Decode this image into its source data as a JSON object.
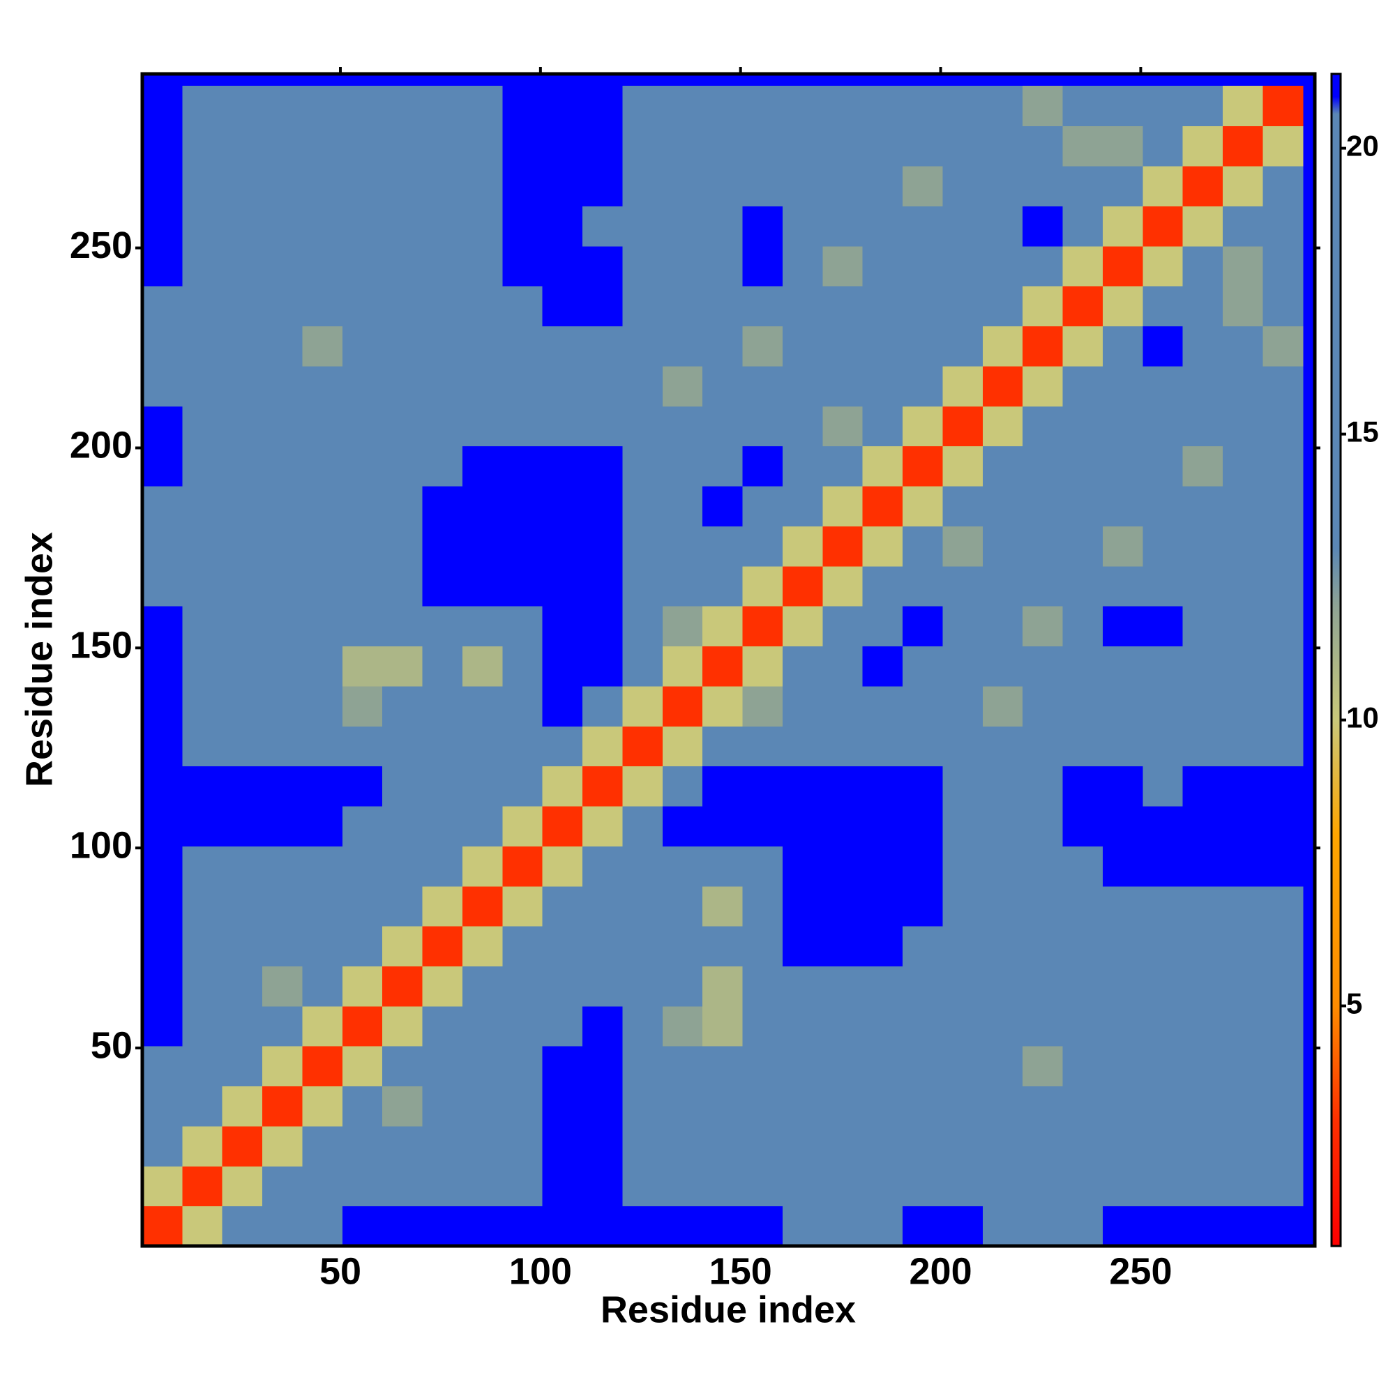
{
  "chart_data": {
    "type": "heatmap",
    "xlabel": "Residue index",
    "ylabel": "Residue index",
    "x": [
      5.5,
      15.5,
      25.5,
      35.5,
      45.5,
      55.5,
      65.5,
      75.5,
      85.5,
      95.5,
      105.5,
      115.5,
      125.5,
      135.5,
      145.5,
      155.5,
      165.5,
      175.5,
      185.5,
      195.5,
      205.5,
      215.5,
      225.5,
      235.5,
      245.5,
      255.5,
      265.5,
      275.5,
      285.5
    ],
    "y": [
      5.5,
      15.5,
      25.5,
      35.5,
      45.5,
      55.5,
      65.5,
      75.5,
      85.5,
      95.5,
      105.5,
      115.5,
      125.5,
      135.5,
      145.5,
      155.5,
      165.5,
      175.5,
      185.5,
      195.5,
      205.5,
      215.5,
      225.5,
      235.5,
      245.5,
      255.5,
      265.5,
      275.5,
      285.5
    ],
    "values": [
      [
        3,
        10,
        17,
        20,
        20,
        22,
        22,
        22,
        22,
        22,
        22,
        22,
        22,
        22,
        22,
        22,
        20,
        20,
        20,
        22,
        22,
        20,
        20,
        20,
        22,
        22,
        22,
        22,
        22
      ],
      [
        10,
        3,
        10,
        15,
        17,
        17,
        17,
        17,
        17,
        20,
        22,
        22,
        20,
        17,
        17,
        17,
        17,
        17,
        20,
        20,
        20,
        20,
        17,
        17,
        20,
        20,
        20,
        17,
        20
      ],
      [
        17,
        10,
        3,
        10,
        13,
        14,
        15,
        17,
        17,
        20,
        22,
        22,
        17,
        17,
        17,
        17,
        17,
        17,
        17,
        17,
        17,
        17,
        17,
        17,
        17,
        20,
        20,
        17,
        17
      ],
      [
        20,
        15,
        10,
        3,
        10,
        13,
        12,
        14,
        17,
        20,
        22,
        22,
        17,
        17,
        17,
        17,
        17,
        17,
        17,
        17,
        17,
        17,
        15,
        17,
        17,
        17,
        17,
        17,
        17
      ],
      [
        20,
        17,
        13,
        10,
        3,
        10,
        13,
        14,
        17,
        17,
        22,
        22,
        17,
        15,
        14,
        17,
        17,
        17,
        17,
        17,
        17,
        17,
        12,
        17,
        17,
        17,
        17,
        13,
        13
      ],
      [
        22,
        17,
        14,
        13,
        10,
        3,
        10,
        13,
        15,
        17,
        20,
        22,
        17,
        12,
        11,
        17,
        17,
        17,
        17,
        17,
        17,
        17,
        13,
        17,
        17,
        17,
        17,
        17,
        17
      ],
      [
        22,
        17,
        15,
        12,
        13,
        10,
        3,
        10,
        13,
        17,
        17,
        20,
        17,
        13,
        11,
        15,
        20,
        20,
        20,
        17,
        17,
        17,
        13,
        17,
        17,
        17,
        17,
        17,
        17
      ],
      [
        22,
        17,
        17,
        14,
        14,
        13,
        10,
        3,
        10,
        14,
        17,
        17,
        17,
        15,
        13,
        17,
        22,
        22,
        22,
        20,
        17,
        17,
        17,
        17,
        17,
        20,
        20,
        20,
        17
      ],
      [
        22,
        17,
        17,
        17,
        17,
        15,
        13,
        10,
        3,
        10,
        14,
        17,
        17,
        14,
        11,
        15,
        22,
        22,
        22,
        22,
        17,
        17,
        17,
        17,
        20,
        20,
        20,
        20,
        20
      ],
      [
        22,
        20,
        20,
        20,
        17,
        17,
        17,
        14,
        10,
        3,
        10,
        13,
        17,
        15,
        14,
        17,
        22,
        22,
        22,
        22,
        20,
        17,
        17,
        20,
        22,
        22,
        22,
        22,
        22
      ],
      [
        22,
        22,
        22,
        22,
        22,
        20,
        17,
        17,
        14,
        10,
        3,
        10,
        15,
        22,
        22,
        22,
        22,
        22,
        22,
        22,
        20,
        20,
        20,
        22,
        22,
        22,
        22,
        22,
        22
      ],
      [
        22,
        22,
        22,
        22,
        22,
        22,
        20,
        17,
        17,
        13,
        10,
        3,
        10,
        20,
        22,
        22,
        22,
        22,
        22,
        22,
        20,
        20,
        20,
        22,
        22,
        20,
        22,
        22,
        22
      ],
      [
        22,
        20,
        17,
        17,
        17,
        17,
        17,
        17,
        17,
        17,
        15,
        10,
        3,
        10,
        15,
        17,
        17,
        17,
        17,
        17,
        17,
        17,
        17,
        17,
        17,
        17,
        17,
        17,
        17
      ],
      [
        22,
        17,
        17,
        17,
        15,
        12,
        13,
        15,
        14,
        15,
        22,
        20,
        10,
        3,
        10,
        12,
        17,
        17,
        17,
        17,
        17,
        12,
        13,
        17,
        17,
        17,
        17,
        17,
        17
      ],
      [
        22,
        17,
        17,
        17,
        14,
        11,
        11,
        13,
        11,
        14,
        22,
        22,
        15,
        10,
        3,
        10,
        15,
        17,
        22,
        17,
        17,
        17,
        17,
        17,
        17,
        17,
        17,
        17,
        17
      ],
      [
        22,
        17,
        17,
        17,
        17,
        17,
        15,
        17,
        15,
        17,
        22,
        22,
        17,
        12,
        10,
        3,
        10,
        15,
        17,
        22,
        17,
        17,
        12,
        17,
        22,
        22,
        17,
        17,
        17
      ],
      [
        20,
        17,
        17,
        17,
        17,
        17,
        20,
        22,
        22,
        22,
        22,
        22,
        17,
        17,
        15,
        10,
        3,
        10,
        15,
        17,
        17,
        17,
        17,
        17,
        17,
        20,
        17,
        17,
        17
      ],
      [
        20,
        17,
        17,
        17,
        17,
        17,
        20,
        22,
        22,
        22,
        22,
        22,
        17,
        17,
        17,
        15,
        10,
        3,
        10,
        15,
        12,
        17,
        17,
        17,
        12,
        17,
        17,
        17,
        13
      ],
      [
        20,
        20,
        17,
        17,
        17,
        17,
        20,
        22,
        22,
        22,
        22,
        22,
        17,
        17,
        22,
        17,
        15,
        10,
        3,
        10,
        15,
        17,
        20,
        17,
        17,
        17,
        17,
        17,
        17
      ],
      [
        22,
        20,
        17,
        17,
        17,
        17,
        17,
        20,
        22,
        22,
        22,
        22,
        17,
        17,
        17,
        22,
        17,
        15,
        10,
        3,
        10,
        15,
        17,
        20,
        17,
        17,
        12,
        17,
        17
      ],
      [
        22,
        20,
        17,
        17,
        17,
        17,
        17,
        17,
        17,
        20,
        20,
        20,
        17,
        17,
        17,
        17,
        17,
        12,
        15,
        10,
        3,
        10,
        15,
        17,
        17,
        17,
        17,
        13,
        17
      ],
      [
        20,
        20,
        17,
        17,
        17,
        17,
        17,
        17,
        17,
        17,
        20,
        20,
        17,
        12,
        17,
        17,
        17,
        17,
        17,
        15,
        10,
        3,
        10,
        15,
        17,
        17,
        17,
        17,
        20
      ],
      [
        20,
        17,
        17,
        15,
        12,
        13,
        13,
        17,
        17,
        17,
        20,
        20,
        17,
        13,
        17,
        12,
        17,
        17,
        20,
        17,
        15,
        10,
        3,
        10,
        15,
        22,
        17,
        17,
        12
      ],
      [
        20,
        17,
        17,
        17,
        17,
        17,
        17,
        17,
        17,
        20,
        22,
        22,
        17,
        17,
        17,
        17,
        17,
        17,
        17,
        20,
        17,
        15,
        10,
        3,
        10,
        15,
        17,
        12,
        20
      ],
      [
        22,
        20,
        17,
        17,
        17,
        17,
        17,
        17,
        20,
        22,
        22,
        22,
        17,
        17,
        17,
        22,
        17,
        12,
        17,
        17,
        17,
        17,
        15,
        10,
        3,
        10,
        15,
        12,
        17
      ],
      [
        22,
        20,
        20,
        17,
        17,
        17,
        17,
        20,
        20,
        22,
        22,
        20,
        17,
        17,
        17,
        22,
        20,
        17,
        17,
        17,
        17,
        17,
        22,
        15,
        10,
        3,
        10,
        15,
        17
      ],
      [
        22,
        20,
        20,
        17,
        17,
        17,
        17,
        20,
        20,
        22,
        22,
        22,
        17,
        17,
        17,
        17,
        17,
        17,
        17,
        12,
        17,
        17,
        17,
        17,
        15,
        10,
        3,
        10,
        15
      ],
      [
        22,
        17,
        17,
        17,
        13,
        17,
        17,
        20,
        20,
        22,
        22,
        22,
        17,
        17,
        17,
        17,
        17,
        17,
        17,
        17,
        13,
        17,
        17,
        12,
        12,
        15,
        10,
        3,
        10
      ],
      [
        22,
        20,
        17,
        17,
        13,
        17,
        17,
        17,
        20,
        22,
        22,
        22,
        17,
        17,
        17,
        17,
        17,
        13,
        17,
        17,
        17,
        20,
        12,
        20,
        17,
        17,
        15,
        10,
        3
      ]
    ],
    "xlim": [
      0.5,
      293.5
    ],
    "ylim": [
      0.5,
      293.5
    ],
    "xticks": [
      50,
      100,
      150,
      200,
      250
    ],
    "yticks": [
      50,
      100,
      150,
      200,
      250
    ],
    "background_color": "#0000ff",
    "colorscale": [
      [
        0.8,
        "#ff0000"
      ],
      [
        3,
        "#ff3000"
      ],
      [
        5,
        "#ff8c00"
      ],
      [
        8,
        "#ffa500"
      ],
      [
        10,
        "#c9c87a"
      ],
      [
        12,
        "#8ea394"
      ],
      [
        13,
        "#5b87b5"
      ],
      [
        20.6,
        "#5b87b5"
      ],
      [
        20.9,
        "#0000ff"
      ],
      [
        21.3,
        "#0000ff"
      ]
    ],
    "colorbar": {
      "lim": [
        0.8,
        21.3
      ],
      "ticks": [
        5,
        10,
        15,
        20
      ]
    }
  }
}
